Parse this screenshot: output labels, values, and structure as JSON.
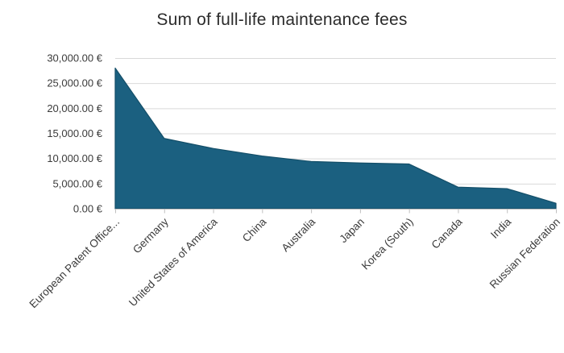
{
  "chart_data": {
    "type": "area",
    "title": "Sum of full-life maintenance fees",
    "categories": [
      "European Patent Office...",
      "Germany",
      "United States of America",
      "China",
      "Australia",
      "Japan",
      "Korea (South)",
      "Canada",
      "India",
      "Russian Federation"
    ],
    "values": [
      28000,
      14000,
      12000,
      10500,
      9400,
      9100,
      8900,
      4300,
      4000,
      1100
    ],
    "xlabel": "",
    "ylabel": "",
    "ylim": [
      0,
      30000
    ],
    "y_tick_step": 5000,
    "y_tick_labels": [
      "0.00 €",
      "5,000.00 €",
      "10,000.00 €",
      "15,000.00 €",
      "20,000.00 €",
      "25,000.00 €",
      "30,000.00 €"
    ],
    "grid": true,
    "legend": false,
    "colors": {
      "area_fill": "#1b6080",
      "area_stroke": "#134e68",
      "gridline": "#d9d9d9",
      "axis_line": "#bfbfbf",
      "tick_label": "#3b3b3b",
      "title_text": "#2b2b2b"
    }
  }
}
